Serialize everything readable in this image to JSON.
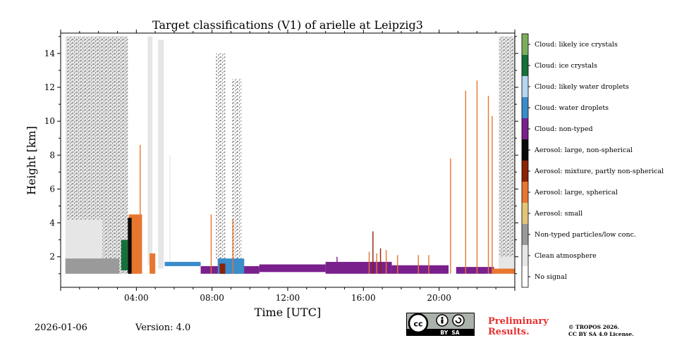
{
  "chart_data": {
    "type": "heatmap",
    "title": "Target classifications (V1) of arielle at Leipzig3",
    "xlabel": "Time [UTC]",
    "ylabel": "Height [km]",
    "xlim_hours": [
      0,
      24
    ],
    "ylim_km": [
      0.2,
      15.2
    ],
    "x_ticks": [
      {
        "hour": 4,
        "label": "04:00"
      },
      {
        "hour": 8,
        "label": "08:00"
      },
      {
        "hour": 12,
        "label": "12:00"
      },
      {
        "hour": 16,
        "label": "16:00"
      },
      {
        "hour": 20,
        "label": "20:00"
      }
    ],
    "y_ticks": [
      {
        "km": 2,
        "label": "2"
      },
      {
        "km": 4,
        "label": "4"
      },
      {
        "km": 6,
        "label": "6"
      },
      {
        "km": 8,
        "label": "8"
      },
      {
        "km": 10,
        "label": "10"
      },
      {
        "km": 12,
        "label": "12"
      },
      {
        "km": 14,
        "label": "14"
      }
    ],
    "classes": [
      {
        "label": "Cloud: likely ice crystals",
        "color": "#7cad5c"
      },
      {
        "label": "Cloud: ice crystals",
        "color": "#16703a"
      },
      {
        "label": "Cloud: likely water droplets",
        "color": "#b6d6f0"
      },
      {
        "label": "Cloud: water droplets",
        "color": "#3a8ccb"
      },
      {
        "label": "Cloud: non-typed",
        "color": "#79208c"
      },
      {
        "label": "Aerosol: large, non-spherical",
        "color": "#0a0a0a"
      },
      {
        "label": "Aerosol: mixture, partly non-spherical",
        "color": "#8b2208"
      },
      {
        "label": "Aerosol: large, spherical",
        "color": "#e8762e"
      },
      {
        "label": "Aerosol: small",
        "color": "#e3c479"
      },
      {
        "label": "Non-typed particles/low conc.",
        "color": "#9a9a9a"
      },
      {
        "label": "Clean atmosphere",
        "color": "#e6e6e6"
      },
      {
        "label": "No signal",
        "color": "#ffffff"
      }
    ],
    "regions": [
      {
        "cls": 10,
        "t0": 0.25,
        "t1": 3.55,
        "h0": 1.0,
        "h1": 15.0
      },
      {
        "cls": 9,
        "t0": 0.3,
        "t1": 3.55,
        "h0": 4.2,
        "h1": 15.0,
        "pattern": "speckle"
      },
      {
        "cls": 9,
        "t0": 0.25,
        "t1": 3.1,
        "h0": 1.0,
        "h1": 1.9
      },
      {
        "cls": 10,
        "t0": 4.6,
        "t1": 4.85,
        "h0": 1.5,
        "h1": 15.0
      },
      {
        "cls": 10,
        "t0": 5.15,
        "t1": 5.45,
        "h0": 1.3,
        "h1": 14.8
      },
      {
        "cls": 10,
        "t0": 5.75,
        "t1": 5.8,
        "h0": 1.5,
        "h1": 8.0
      },
      {
        "cls": 9,
        "t0": 8.2,
        "t1": 8.7,
        "h0": 1.8,
        "h1": 14.0,
        "pattern": "speckle"
      },
      {
        "cls": 9,
        "t0": 9.05,
        "t1": 9.55,
        "h0": 1.5,
        "h1": 12.5,
        "pattern": "speckle"
      },
      {
        "cls": 10,
        "t0": 23.15,
        "t1": 24.0,
        "h0": 1.2,
        "h1": 15.0
      },
      {
        "cls": 9,
        "t0": 23.2,
        "t1": 24.0,
        "h0": 2.0,
        "h1": 15.0,
        "pattern": "speckle"
      },
      {
        "cls": 7,
        "t0": 2.2,
        "t1": 3.8,
        "h0": 1.0,
        "h1": 4.3,
        "pattern": "speckle"
      },
      {
        "cls": 7,
        "t0": 3.6,
        "t1": 4.3,
        "h0": 1.0,
        "h1": 4.5
      },
      {
        "cls": 1,
        "t0": 3.2,
        "t1": 3.55,
        "h0": 1.2,
        "h1": 3.0
      },
      {
        "cls": 5,
        "t0": 3.55,
        "t1": 3.75,
        "h0": 1.0,
        "h1": 4.3
      },
      {
        "cls": 7,
        "t0": 4.7,
        "t1": 5.0,
        "h0": 1.0,
        "h1": 2.2
      },
      {
        "cls": 7,
        "t0": 3.85,
        "t1": 4.05,
        "h0": 1.0,
        "h1": 4.2
      },
      {
        "cls": 3,
        "t0": 5.5,
        "t1": 7.4,
        "h0": 1.45,
        "h1": 1.7
      },
      {
        "cls": 4,
        "t0": 7.4,
        "t1": 10.5,
        "h0": 1.0,
        "h1": 1.45
      },
      {
        "cls": 4,
        "t0": 10.5,
        "t1": 14.0,
        "h0": 1.1,
        "h1": 1.55
      },
      {
        "cls": 4,
        "t0": 14.0,
        "t1": 17.5,
        "h0": 1.0,
        "h1": 1.7
      },
      {
        "cls": 4,
        "t0": 17.5,
        "t1": 20.5,
        "h0": 1.0,
        "h1": 1.5
      },
      {
        "cls": 4,
        "t0": 20.9,
        "t1": 22.9,
        "h0": 1.0,
        "h1": 1.4
      },
      {
        "cls": 3,
        "t0": 8.3,
        "t1": 9.7,
        "h0": 1.0,
        "h1": 1.9
      },
      {
        "cls": 6,
        "t0": 8.4,
        "t1": 8.7,
        "h0": 1.0,
        "h1": 1.6
      },
      {
        "cls": 7,
        "t0": 22.8,
        "t1": 24.0,
        "h0": 1.0,
        "h1": 1.3
      }
    ],
    "spikes": [
      {
        "t": 4.2,
        "h1": 8.6,
        "cls": 7
      },
      {
        "t": 7.95,
        "h1": 4.5,
        "cls": 7
      },
      {
        "t": 9.1,
        "h1": 4.2,
        "cls": 7
      },
      {
        "t": 14.6,
        "h1": 2.0,
        "cls": 4
      },
      {
        "t": 16.3,
        "h1": 2.3,
        "cls": 7
      },
      {
        "t": 16.5,
        "h1": 3.5,
        "cls": 6
      },
      {
        "t": 16.7,
        "h1": 2.2,
        "cls": 7
      },
      {
        "t": 16.9,
        "h1": 2.5,
        "cls": 6
      },
      {
        "t": 17.2,
        "h1": 2.4,
        "cls": 7
      },
      {
        "t": 17.8,
        "h1": 2.1,
        "cls": 7
      },
      {
        "t": 18.9,
        "h1": 2.1,
        "cls": 7
      },
      {
        "t": 19.45,
        "h1": 2.1,
        "cls": 7
      },
      {
        "t": 20.6,
        "h1": 7.8,
        "cls": 7
      },
      {
        "t": 21.4,
        "h1": 11.8,
        "cls": 7
      },
      {
        "t": 22.0,
        "h1": 12.4,
        "cls": 7
      },
      {
        "t": 22.6,
        "h1": 11.5,
        "cls": 7
      },
      {
        "t": 22.8,
        "h1": 10.3,
        "cls": 7
      }
    ]
  },
  "footer": {
    "date": "2026-01-06",
    "version": "Version: 4.0",
    "preliminary": "Preliminary Results.",
    "copyright_line1": "© TROPOS 2026.",
    "copyright_line2": "CC BY SA 4.0 License.",
    "badge_text": "BY  SA"
  }
}
